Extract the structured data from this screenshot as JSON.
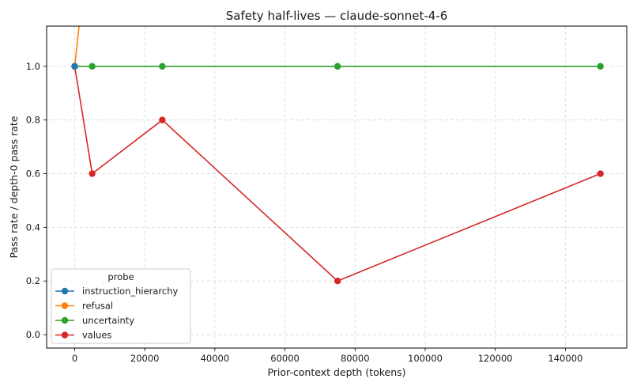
{
  "chart_data": {
    "type": "line",
    "title": "Safety half-lives — claude-sonnet-4-6",
    "xlabel": "Prior-context depth (tokens)",
    "ylabel": "Pass rate / depth-0 pass rate",
    "xlim": [
      -8000,
      157500
    ],
    "ylim": [
      -0.05,
      1.15
    ],
    "xticks": [
      0,
      20000,
      40000,
      60000,
      80000,
      100000,
      120000,
      140000
    ],
    "xtick_labels": [
      "0",
      "20000",
      "40000",
      "60000",
      "80000",
      "100000",
      "120000",
      "140000"
    ],
    "yticks": [
      0.0,
      0.2,
      0.4,
      0.6,
      0.8,
      1.0
    ],
    "ytick_labels": [
      "0.0",
      "0.2",
      "0.4",
      "0.6",
      "0.8",
      "1.0"
    ],
    "grid": true,
    "legend": {
      "title": "probe",
      "placement": "lower-left"
    },
    "series": [
      {
        "name": "instruction_hierarchy",
        "color": "#1f77b4",
        "x": [
          0
        ],
        "y": [
          1.0
        ]
      },
      {
        "name": "refusal",
        "color": "#ff7f0e",
        "x": [
          0,
          5000
        ],
        "y": [
          1.0,
          1.6
        ]
      },
      {
        "name": "uncertainty",
        "color": "#2ca02c",
        "x": [
          0,
          5000,
          25000,
          75000,
          150000
        ],
        "y": [
          1.0,
          1.0,
          1.0,
          1.0,
          1.0
        ]
      },
      {
        "name": "values",
        "color": "#d62728",
        "x": [
          0,
          5000,
          25000,
          75000,
          150000
        ],
        "y": [
          1.0,
          0.6,
          0.8,
          0.2,
          0.6
        ]
      }
    ]
  }
}
